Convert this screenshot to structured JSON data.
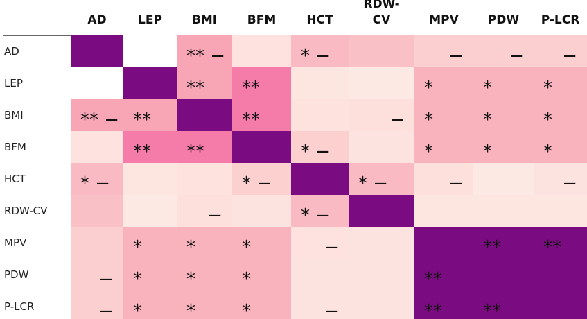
{
  "chart_data": {
    "type": "heatmap",
    "title": "",
    "columns": [
      "AD",
      "LEP",
      "BMI",
      "BFM",
      "HCT",
      "RDW-CV",
      "MPV",
      "PDW",
      "P-LCR"
    ],
    "columns_display": [
      [
        "AD"
      ],
      [
        "LEP"
      ],
      [
        "BMI"
      ],
      [
        "BFM"
      ],
      [
        "HCT"
      ],
      [
        "RDW-",
        "CV"
      ],
      [
        "MPV"
      ],
      [
        "PDW"
      ],
      [
        "P-LCR"
      ]
    ],
    "rows": [
      "AD",
      "LEP",
      "BMI",
      "BFM",
      "HCT",
      "RDW-CV",
      "MPV",
      "PDW",
      "P-LCR"
    ],
    "cell_colors": [
      [
        "#7b0b80",
        "#ffffff",
        "#f8a6b5",
        "#fde2df",
        "#f9bac3",
        "#f9c1c5",
        "#fbcfcf",
        "#fbcfcf",
        "#fbcfcf"
      ],
      [
        "#ffffff",
        "#7b0b80",
        "#f8a6b5",
        "#f57ba8",
        "#fde6e0",
        "#fde9e3",
        "#f9b3bd",
        "#f9b3bd",
        "#f9b3bd"
      ],
      [
        "#f8a6b5",
        "#f8a6b5",
        "#7b0b80",
        "#f57ba8",
        "#fde2de",
        "#fde0dc",
        "#f9b3bd",
        "#f9b3bd",
        "#f9b3bd"
      ],
      [
        "#fde2df",
        "#f57ba8",
        "#f57ba8",
        "#7b0b80",
        "#fbd0cf",
        "#fde3df",
        "#f9b3bd",
        "#f9b3bd",
        "#f9b3bd"
      ],
      [
        "#f9bac3",
        "#fde6e0",
        "#fde2de",
        "#fbd0cf",
        "#7b0b80",
        "#f9bac3",
        "#fde0dc",
        "#fde9e3",
        "#fde3df"
      ],
      [
        "#f9c1c5",
        "#fde9e3",
        "#fde0dc",
        "#fde3df",
        "#f9bac3",
        "#7b0b80",
        "#fde6e0",
        "#fde6e0",
        "#fde6e0"
      ],
      [
        "#fbcfcf",
        "#f9b3bd",
        "#f9b3bd",
        "#f9b3bd",
        "#fde2df",
        "#fde3df",
        "#7b0b80",
        "#7b0b80",
        "#7b0b80"
      ],
      [
        "#fbcfcf",
        "#f9b3bd",
        "#f9b3bd",
        "#f9b3bd",
        "#fde3df",
        "#fde3df",
        "#7b0b80",
        "#7b0b80",
        "#7b0b80"
      ],
      [
        "#fbcfcf",
        "#f9b3bd",
        "#f9b3bd",
        "#f9b3bd",
        "#fde3df",
        "#fde3df",
        "#7b0b80",
        "#7b0b80",
        "#7b0b80"
      ]
    ],
    "cell_marks": [
      [
        "",
        "",
        "** −",
        "",
        "* −",
        "",
        "−",
        "−",
        "−"
      ],
      [
        "",
        "",
        "**",
        "**",
        "",
        "",
        "*",
        "*",
        "*"
      ],
      [
        "** −",
        "**",
        "",
        "**",
        "",
        "−",
        "*",
        "*",
        "*"
      ],
      [
        "",
        "**",
        "**",
        "",
        "* −",
        "",
        "*",
        "*",
        "*"
      ],
      [
        "* −",
        "",
        "",
        "* −",
        "",
        "* −",
        "−",
        "",
        "−"
      ],
      [
        "",
        "",
        "−",
        "",
        "* −",
        "",
        "",
        "",
        ""
      ],
      [
        "",
        "*",
        "*",
        "*",
        "−",
        "",
        "",
        "**",
        "**"
      ],
      [
        "−",
        "*",
        "*",
        "*",
        "",
        "",
        "**",
        "",
        ""
      ],
      [
        "−",
        "*",
        "*",
        "*",
        "−",
        "",
        "**",
        "**",
        ""
      ]
    ],
    "legend": "none",
    "grid": false
  }
}
